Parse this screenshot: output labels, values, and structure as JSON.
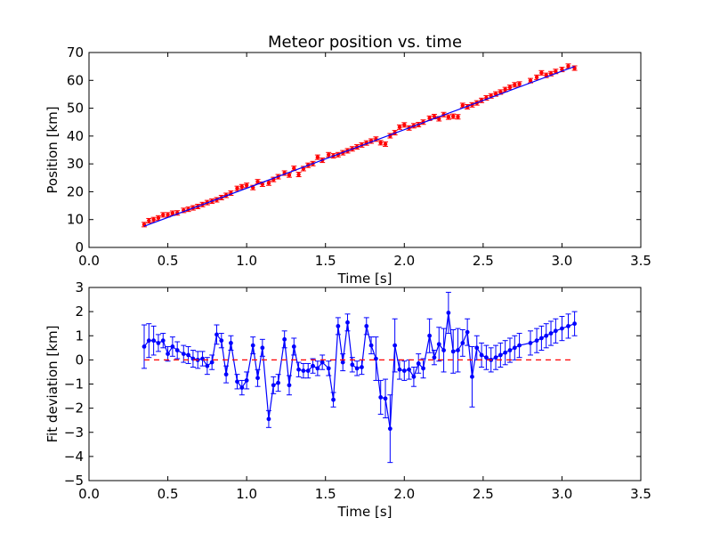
{
  "chart_data": [
    {
      "type": "scatter",
      "title": "Meteor position vs. time",
      "xlabel": "Time [s]",
      "ylabel": "Position [km]",
      "xlim": [
        0.0,
        3.5
      ],
      "ylim": [
        0,
        70
      ],
      "xticks": [
        "0.0",
        "0.5",
        "1.0",
        "1.5",
        "2.0",
        "2.5",
        "3.0",
        "3.5"
      ],
      "yticks": [
        "0",
        "10",
        "20",
        "30",
        "40",
        "50",
        "60",
        "70"
      ],
      "grid": false,
      "series": [
        {
          "kind": "points-with-errorbars",
          "color": "#ff0000",
          "x": [
            0.35,
            0.38,
            0.41,
            0.44,
            0.47,
            0.5,
            0.53,
            0.56,
            0.6,
            0.63,
            0.66,
            0.69,
            0.72,
            0.75,
            0.78,
            0.81,
            0.84,
            0.87,
            0.9,
            0.94,
            0.97,
            1.0,
            1.04,
            1.07,
            1.1,
            1.14,
            1.17,
            1.2,
            1.24,
            1.27,
            1.3,
            1.33,
            1.36,
            1.39,
            1.42,
            1.45,
            1.48,
            1.52,
            1.55,
            1.58,
            1.61,
            1.64,
            1.67,
            1.7,
            1.73,
            1.76,
            1.79,
            1.82,
            1.85,
            1.88,
            1.91,
            1.94,
            1.97,
            2.0,
            2.03,
            2.06,
            2.09,
            2.12,
            2.16,
            2.19,
            2.22,
            2.25,
            2.28,
            2.31,
            2.34,
            2.37,
            2.4,
            2.43,
            2.46,
            2.49,
            2.52,
            2.55,
            2.58,
            2.61,
            2.64,
            2.67,
            2.7,
            2.73,
            2.8,
            2.84,
            2.87,
            2.9,
            2.93,
            2.96,
            3.0,
            3.04,
            3.08
          ],
          "y": [
            8.2,
            9.6,
            10.0,
            10.6,
            11.7,
            11.7,
            12.3,
            12.4,
            13.3,
            13.7,
            14.2,
            14.7,
            15.4,
            16.1,
            16.6,
            17.1,
            17.9,
            18.7,
            19.5,
            21.2,
            21.8,
            22.3,
            21.5,
            23.6,
            22.7,
            23.1,
            24.4,
            25.4,
            26.7,
            26.0,
            28.4,
            26.2,
            28.3,
            29.5,
            30.1,
            32.4,
            31.3,
            33.3,
            32.9,
            33.3,
            34.0,
            34.7,
            35.4,
            36.1,
            36.8,
            37.5,
            38.2,
            38.9,
            37.6,
            37.1,
            40.1,
            41.2,
            43.2,
            44.0,
            42.9,
            43.7,
            44.1,
            45.0,
            46.4,
            47.0,
            46.2,
            47.7,
            46.8,
            47.1,
            46.9,
            51.0,
            50.5,
            51.2,
            51.9,
            52.8,
            53.7,
            54.4,
            55.1,
            55.8,
            56.7,
            57.5,
            58.4,
            58.7,
            59.9,
            61.1,
            62.7,
            61.8,
            62.4,
            63.2,
            63.9,
            65.1,
            64.4
          ],
          "yerr": 0.8
        },
        {
          "kind": "line",
          "color": "#0000ff",
          "x": [
            0.35,
            3.08
          ],
          "y": [
            7.6,
            65.0
          ]
        }
      ]
    },
    {
      "type": "line",
      "title": "",
      "xlabel": "Time [s]",
      "ylabel": "Fit deviation [km]",
      "xlim": [
        0.0,
        3.5
      ],
      "ylim": [
        -5,
        3
      ],
      "xticks": [
        "0.0",
        "0.5",
        "1.0",
        "1.5",
        "2.0",
        "2.5",
        "3.0",
        "3.5"
      ],
      "yticks": [
        "−5",
        "−4",
        "−3",
        "−2",
        "−1",
        "0",
        "1",
        "2",
        "3"
      ],
      "grid": false,
      "series": [
        {
          "kind": "line-markers-errorbars",
          "color": "#0000ff",
          "x": [
            0.35,
            0.38,
            0.41,
            0.44,
            0.47,
            0.5,
            0.53,
            0.56,
            0.6,
            0.63,
            0.66,
            0.69,
            0.72,
            0.75,
            0.78,
            0.81,
            0.84,
            0.87,
            0.9,
            0.94,
            0.97,
            1.0,
            1.04,
            1.07,
            1.1,
            1.14,
            1.17,
            1.2,
            1.24,
            1.27,
            1.3,
            1.33,
            1.36,
            1.39,
            1.42,
            1.45,
            1.48,
            1.52,
            1.55,
            1.58,
            1.61,
            1.64,
            1.67,
            1.7,
            1.73,
            1.76,
            1.79,
            1.82,
            1.85,
            1.88,
            1.91,
            1.94,
            1.97,
            2.0,
            2.03,
            2.06,
            2.09,
            2.12,
            2.16,
            2.19,
            2.22,
            2.25,
            2.28,
            2.31,
            2.34,
            2.37,
            2.4,
            2.43,
            2.46,
            2.49,
            2.52,
            2.55,
            2.58,
            2.61,
            2.64,
            2.67,
            2.7,
            2.73,
            2.8,
            2.84,
            2.87,
            2.9,
            2.93,
            2.96,
            3.0,
            3.04,
            3.08
          ],
          "y": [
            0.55,
            0.8,
            0.8,
            0.7,
            0.8,
            0.25,
            0.55,
            0.4,
            0.25,
            0.2,
            0.05,
            0.0,
            0.05,
            -0.25,
            -0.1,
            1.05,
            0.8,
            -0.6,
            0.7,
            -0.9,
            -1.15,
            -0.85,
            0.6,
            -0.75,
            0.5,
            -2.45,
            -1.05,
            -0.95,
            0.85,
            -1.05,
            0.55,
            -0.4,
            -0.45,
            -0.45,
            -0.25,
            -0.35,
            -0.1,
            -0.35,
            -1.65,
            1.4,
            -0.1,
            1.55,
            -0.2,
            -0.35,
            -0.3,
            1.4,
            0.6,
            0.05,
            -1.55,
            -1.6,
            -2.85,
            0.6,
            -0.4,
            -0.45,
            -0.4,
            -0.7,
            -0.15,
            -0.35,
            1.0,
            0.1,
            0.65,
            0.4,
            1.95,
            0.35,
            0.4,
            0.7,
            1.15,
            -0.7,
            0.5,
            0.2,
            0.1,
            0.0,
            0.1,
            0.2,
            0.3,
            0.4,
            0.5,
            0.6,
            0.7,
            0.8,
            0.9,
            1.0,
            1.1,
            1.2,
            1.3,
            1.4,
            1.5
          ],
          "yerr": [
            0.9,
            0.7,
            0.6,
            0.35,
            0.3,
            0.3,
            0.4,
            0.35,
            0.35,
            0.35,
            0.35,
            0.35,
            0.3,
            0.35,
            0.3,
            0.4,
            0.3,
            0.35,
            0.3,
            0.3,
            0.3,
            0.35,
            0.35,
            0.35,
            0.35,
            0.35,
            0.35,
            0.35,
            0.35,
            0.4,
            0.35,
            0.3,
            0.3,
            0.3,
            0.3,
            0.3,
            0.3,
            0.3,
            0.3,
            0.35,
            0.35,
            0.35,
            0.3,
            0.3,
            0.3,
            0.35,
            0.35,
            0.9,
            0.7,
            0.8,
            1.4,
            1.1,
            0.4,
            0.4,
            0.4,
            0.4,
            0.4,
            0.4,
            0.7,
            0.3,
            0.7,
            0.9,
            0.85,
            0.9,
            0.9,
            0.55,
            0.55,
            1.25,
            0.5,
            0.5,
            0.5,
            0.5,
            0.5,
            0.5,
            0.5,
            0.5,
            0.5,
            0.5,
            0.5,
            0.5,
            0.5,
            0.5,
            0.5,
            0.5,
            0.5,
            0.5,
            0.5
          ]
        },
        {
          "kind": "dashed-reference-line",
          "color": "#ff0000",
          "x": [
            0.35,
            3.08
          ],
          "y": [
            0,
            0
          ]
        }
      ]
    }
  ]
}
